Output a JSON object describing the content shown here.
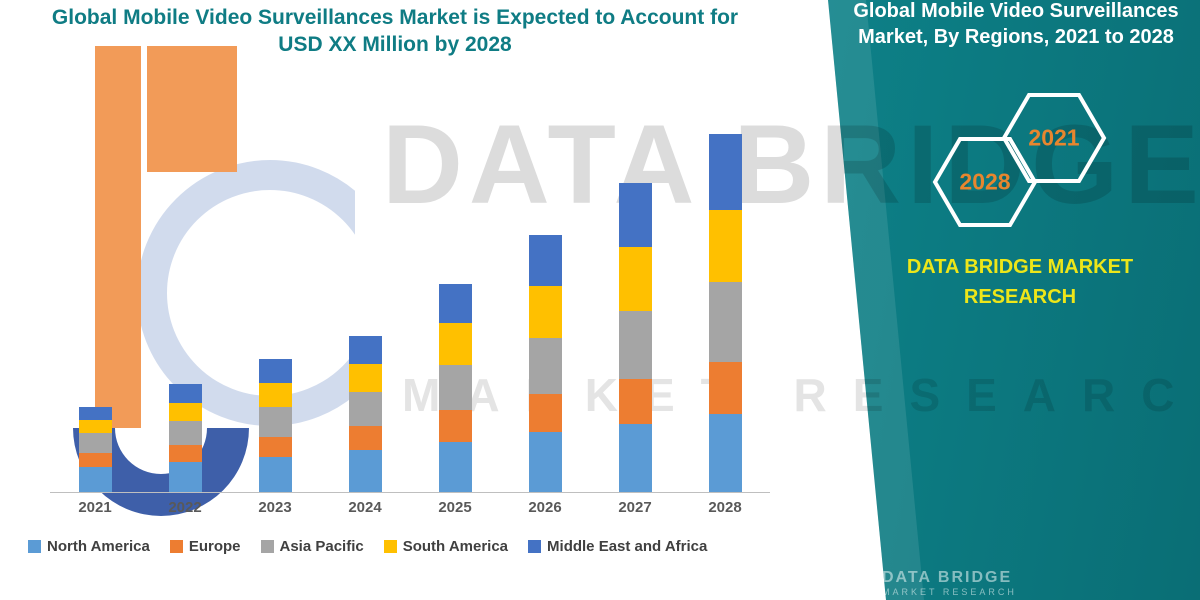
{
  "watermark": {
    "line1": "DATA BRIDGE",
    "line2": "MARKET RESEARCH",
    "logo_letter": "b"
  },
  "panel": {
    "title_line1": "Global Mobile Video Surveillances",
    "title_line2": "Market, By Regions, 2021 to 2028",
    "hexagon_left_label": "2028",
    "hexagon_right_label": "2021",
    "brand_line1": "DATA BRIDGE MARKET",
    "brand_line2": "RESEARCH",
    "footer_line1": "DATA BRIDGE",
    "footer_line2": "MARKET RESEARCH",
    "background_color": "#0C7A80",
    "accent_text_color": "#E8862E",
    "brand_text_color": "#EDE619"
  },
  "chart_data": {
    "type": "bar",
    "stacked": true,
    "title": "Global Mobile Video Surveillances Market is Expected to Account for USD XX Million by 2028",
    "xlabel": "",
    "ylabel": "",
    "ylim": [
      0,
      400
    ],
    "grid": false,
    "legend_position": "bottom",
    "categories": [
      "2021",
      "2022",
      "2023",
      "2024",
      "2025",
      "2026",
      "2027",
      "2028"
    ],
    "series": [
      {
        "name": "North America",
        "color": "#5B9BD5",
        "values": [
          25,
          30,
          35,
          42,
          50,
          60,
          68,
          78
        ]
      },
      {
        "name": "Europe",
        "color": "#ED7D31",
        "values": [
          14,
          17,
          20,
          24,
          32,
          38,
          45,
          52
        ]
      },
      {
        "name": "Asia Pacific",
        "color": "#A5A5A5",
        "values": [
          20,
          24,
          30,
          34,
          45,
          56,
          68,
          80
        ]
      },
      {
        "name": "South America",
        "color": "#FFC000",
        "values": [
          13,
          18,
          24,
          28,
          42,
          52,
          64,
          72
        ]
      },
      {
        "name": "Middle East and Africa",
        "color": "#4472C4",
        "values": [
          13,
          19,
          24,
          28,
          39,
          51,
          64,
          76
        ]
      }
    ]
  }
}
